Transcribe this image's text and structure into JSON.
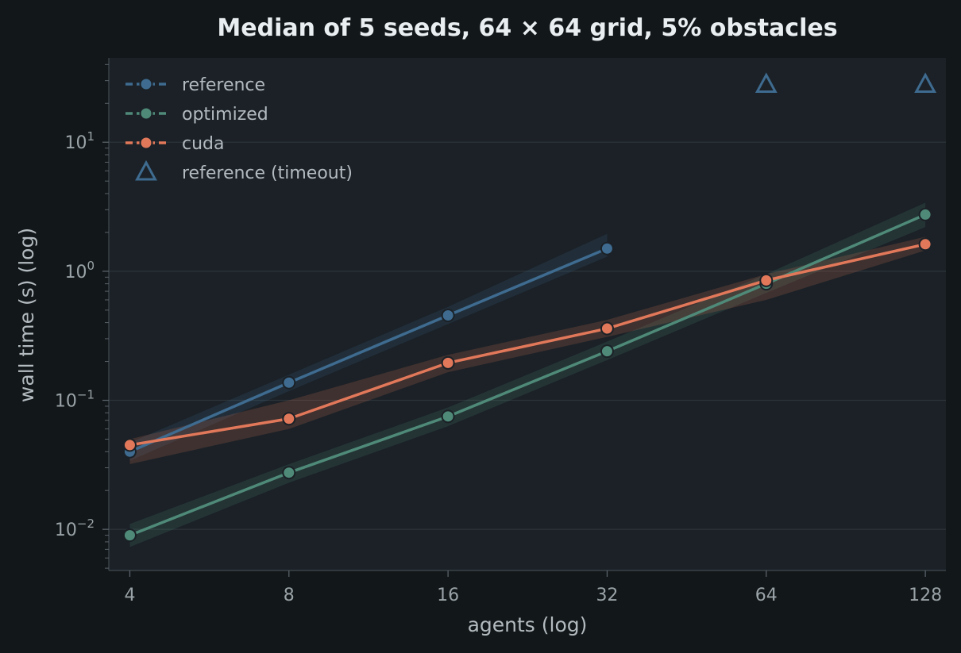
{
  "chart_data": {
    "type": "line",
    "title": "Median of 5 seeds, 64 × 64 grid, 5% obstacles",
    "xlabel": "agents (log)",
    "ylabel": "wall time (s) (log)",
    "xscale": "log2",
    "yscale": "log10",
    "x": [
      4,
      8,
      16,
      32,
      64,
      128
    ],
    "x_tick_labels": [
      "4",
      "8",
      "16",
      "32",
      "64",
      "128"
    ],
    "y_ticks": [
      {
        "base": "10",
        "exp": "−2",
        "value": 0.01
      },
      {
        "base": "10",
        "exp": "−1",
        "value": 0.1
      },
      {
        "base": "10",
        "exp": "0",
        "value": 1
      },
      {
        "base": "10",
        "exp": "1",
        "value": 10
      }
    ],
    "xlim": [
      3.65,
      140
    ],
    "ylim": [
      0.0048,
      45
    ],
    "grid": "horizontal",
    "legend_position": "upper-left",
    "series": [
      {
        "name": "reference",
        "color": "#3e6b8f",
        "x": [
          4,
          8,
          16,
          32
        ],
        "values": [
          0.04,
          0.137,
          0.455,
          1.5
        ],
        "band_low": [
          0.034,
          0.118,
          0.39,
          1.3
        ],
        "band_high": [
          0.047,
          0.158,
          0.53,
          1.95
        ]
      },
      {
        "name": "optimized",
        "color": "#4f8a78",
        "x": [
          4,
          8,
          16,
          32,
          64,
          128
        ],
        "values": [
          0.009,
          0.0275,
          0.075,
          0.24,
          0.8,
          2.75
        ],
        "band_low": [
          0.0073,
          0.023,
          0.063,
          0.205,
          0.68,
          2.2
        ],
        "band_high": [
          0.011,
          0.032,
          0.088,
          0.285,
          0.95,
          3.4
        ]
      },
      {
        "name": "cuda",
        "color": "#e2785a",
        "x": [
          4,
          8,
          16,
          32,
          64,
          128
        ],
        "values": [
          0.045,
          0.072,
          0.195,
          0.36,
          0.85,
          1.62
        ],
        "band_low": [
          0.032,
          0.06,
          0.165,
          0.31,
          0.6,
          1.45
        ],
        "band_high": [
          0.05,
          0.1,
          0.225,
          0.42,
          0.95,
          1.85
        ]
      }
    ],
    "timeout_markers": {
      "name": "reference (timeout)",
      "color": "#3e6b8f",
      "x": [
        64,
        128
      ],
      "values": [
        28,
        28
      ]
    }
  }
}
